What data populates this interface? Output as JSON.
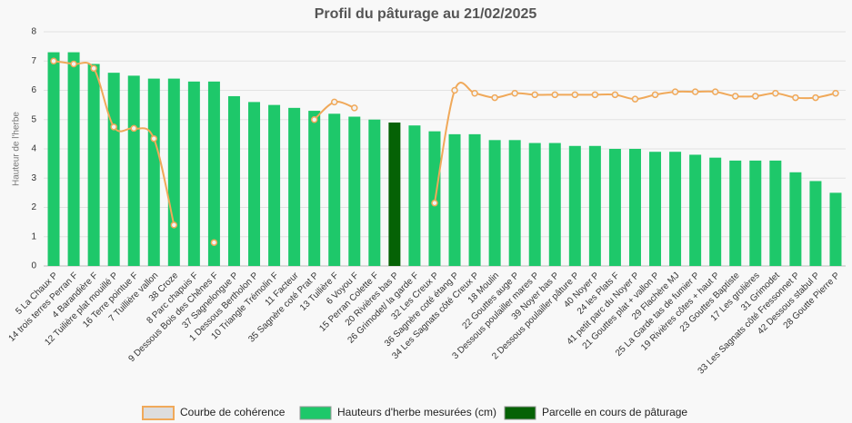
{
  "chart_data": {
    "type": "bar",
    "title": "Profil du pâturage au 21/02/2025",
    "y_label": "Hauteur de l'herbe",
    "ylim": [
      0,
      8
    ],
    "yticks": [
      0,
      1,
      2,
      3,
      4,
      5,
      6,
      7,
      8
    ],
    "grid": true,
    "legend": "bottom",
    "categories": [
      "5 La Chaux P",
      "14 trois terres Perran F",
      "4 Barandière F",
      "12 Tuilière plat mouillé P",
      "16 Terre pointue F",
      "7 Tuillière vallon",
      "38 Croze",
      "8 Parc chapuis F",
      "9 Dessous Bois des Chênes F",
      "37 Sagnelongue P",
      "1 Dessous Bertholon P",
      "10 Triangle Trémolin F",
      "11 Facteur",
      "35 Sagnère coté Prat P",
      "13 Tuilière F",
      "6 Voyou F",
      "15 Perran Colette F",
      "20 Rivières bas P",
      "26 Grimodet/ la garde F",
      "32 Les Creux P",
      "36 Sagnère coté étang P",
      "34 Les Sagnats côté Creux P",
      "18 Moulin",
      "22 Gouttes auge P",
      "3 Dessous poulailler mares P",
      "39 Noyer bas P",
      "2 Dessous poulailler pâture P",
      "40 Noyer P",
      "24 les Plats F",
      "41 petit parc du Noyer P",
      "21 Gouttes plat + vallon P",
      "29 Flachère MJ",
      "25 La Garde tas de fumier P",
      "19 Rivières côtes + haut P",
      "23 Gouttes Baptiste",
      "17 Les grolières",
      "31 Grimodet",
      "33 Les Sagnats côté Fressonnet P",
      "42 Dessous stabul P",
      "28 Goutte Pierre P"
    ],
    "series": [
      {
        "name": "Courbe de cohérence",
        "type": "line",
        "color": "#f0a95a",
        "values": [
          7.0,
          6.9,
          6.75,
          4.75,
          4.7,
          4.35,
          1.4,
          null,
          0.8,
          null,
          null,
          null,
          null,
          5.0,
          5.6,
          5.4,
          null,
          null,
          null,
          2.15,
          6.0,
          5.9,
          5.75,
          5.9,
          5.85,
          5.85,
          5.85,
          5.85,
          5.85,
          5.7,
          5.85,
          5.95,
          5.95,
          5.95,
          5.8,
          5.8,
          5.9,
          5.75,
          5.75,
          5.9
        ]
      },
      {
        "name": "Hauteurs d'herbe mesurées (cm)",
        "type": "bar",
        "color": "#1ec86a",
        "values": [
          7.3,
          7.3,
          6.9,
          6.6,
          6.5,
          6.4,
          6.4,
          6.3,
          6.3,
          5.8,
          5.6,
          5.5,
          5.4,
          5.3,
          5.2,
          5.1,
          5.0,
          null,
          4.8,
          4.6,
          4.5,
          4.5,
          4.3,
          4.3,
          4.2,
          4.2,
          4.1,
          4.1,
          4.0,
          4.0,
          3.9,
          3.9,
          3.8,
          3.7,
          3.6,
          3.6,
          3.6,
          3.2,
          2.9,
          2.5
        ]
      },
      {
        "name": "Parcelle en cours de pâturage",
        "type": "bar",
        "color": "#056205",
        "values": [
          null,
          null,
          null,
          null,
          null,
          null,
          null,
          null,
          null,
          null,
          null,
          null,
          null,
          null,
          null,
          null,
          null,
          4.9,
          null,
          null,
          null,
          null,
          null,
          null,
          null,
          null,
          null,
          null,
          null,
          null,
          null,
          null,
          null,
          null,
          null,
          null,
          null,
          null,
          null,
          null
        ]
      }
    ]
  }
}
